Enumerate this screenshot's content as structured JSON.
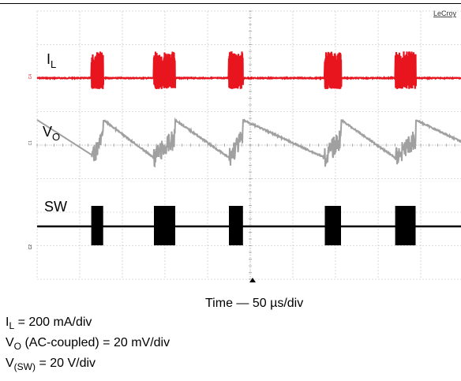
{
  "brand": "LeCroy",
  "channels": [
    {
      "id": "C4",
      "label": "I",
      "label_sub": "L",
      "color": "#e8141e"
    },
    {
      "id": "C1",
      "label": "V",
      "label_sub": "O",
      "color": "#a0a0a0"
    },
    {
      "id": "C2",
      "label": "SW",
      "label_sub": "",
      "color": "#000000"
    }
  ],
  "time_label": "Time — 50 µs/div",
  "info": [
    {
      "sym": "I",
      "sub": "L",
      "text": " = 200 mA/div"
    },
    {
      "sym": "V",
      "sub": "O",
      "text": " (AC-coupled) = 20 mV/div"
    },
    {
      "sym": "V",
      "sub": "(SW)",
      "text": " = 20 V/div"
    }
  ],
  "chart_data": {
    "type": "line",
    "title": "",
    "xlabel": "Time — 50 µs/div",
    "grid": true,
    "divisions": {
      "x": 10,
      "y": 8
    },
    "series": [
      {
        "name": "I_L",
        "description_scale": "200 mA/div"
      },
      {
        "name": "V_O",
        "description_scale": "20 mV/div"
      },
      {
        "name": "V_SW",
        "description_scale": "20 V/div"
      }
    ],
    "burst_start_div": [
      1.27,
      2.74,
      4.5,
      6.75,
      8.4
    ],
    "burst_width_div": [
      0.28,
      0.5,
      0.33,
      0.38,
      0.48
    ]
  }
}
